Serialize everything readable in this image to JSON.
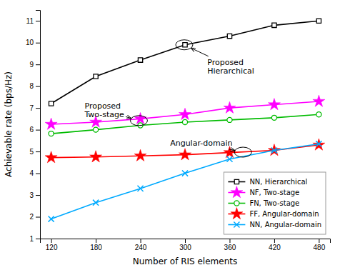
{
  "chart_data": {
    "type": "line",
    "xlabel": "Number of RIS elements",
    "ylabel": "Achievable rate (bps/Hz)",
    "x": [
      120,
      180,
      240,
      300,
      360,
      420,
      480
    ],
    "series": [
      {
        "name": "NN, Hierarchical",
        "color": "#000000",
        "marker": "square",
        "values": [
          7.2,
          8.45,
          9.2,
          9.9,
          10.3,
          10.8,
          11.0
        ]
      },
      {
        "name": "NF, Two-stage",
        "color": "#ff00ff",
        "marker": "star",
        "values": [
          6.25,
          6.35,
          6.5,
          6.7,
          7.0,
          7.15,
          7.3
        ]
      },
      {
        "name": "FN, Two-stage",
        "color": "#00bb00",
        "marker": "circle",
        "values": [
          5.82,
          6.0,
          6.2,
          6.35,
          6.45,
          6.55,
          6.7
        ]
      },
      {
        "name": "FF, Angular-domain",
        "color": "#ff0000",
        "marker": "star",
        "values": [
          4.72,
          4.75,
          4.8,
          4.85,
          4.95,
          5.05,
          5.3
        ]
      },
      {
        "name": "NN, Angular-domain",
        "color": "#00aaff",
        "marker": "x",
        "values": [
          1.9,
          2.65,
          3.3,
          4.0,
          4.65,
          5.05,
          5.35
        ]
      }
    ],
    "xlim": [
      105,
      495
    ],
    "ylim": [
      1,
      11.5
    ],
    "xticks": [
      120,
      180,
      240,
      300,
      360,
      420,
      480
    ],
    "yticks": [
      1,
      2,
      3,
      4,
      5,
      6,
      7,
      8,
      9,
      10,
      11
    ],
    "grid": false,
    "legend": "lower right",
    "annotations": [
      {
        "text": "Proposed\nHierarchical",
        "xy": [
          299,
          9.9
        ],
        "xytext": [
          330,
          8.9
        ]
      },
      {
        "text": "Proposed\nTwo-stage",
        "xy": [
          238,
          6.42
        ],
        "xytext": [
          165,
          6.9
        ]
      },
      {
        "text": "Angular-domain",
        "xy": [
          378,
          4.97
        ],
        "xytext": [
          280,
          5.4
        ]
      }
    ]
  }
}
